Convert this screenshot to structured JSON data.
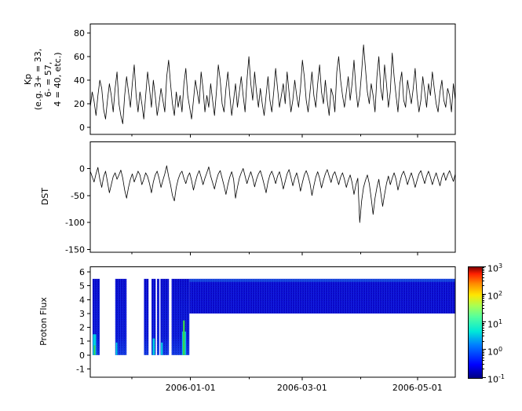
{
  "figure": {
    "background": "#ffffff",
    "line_color": "#000000"
  },
  "x_axis": {
    "start_date": "2005-11-09",
    "end_date": "2006-05-21",
    "days_total": 193,
    "major_ticks": [
      {
        "day": 53,
        "label": "2006-01-01"
      },
      {
        "day": 112,
        "label": "2006-03-01"
      },
      {
        "day": 173,
        "label": "2006-05-01"
      }
    ],
    "minor_tick_days": [
      22,
      84,
      143
    ]
  },
  "chart_data": [
    {
      "type": "line",
      "name": "kp",
      "ylabel_lines": [
        "Kp",
        "(e.g. 3+ = 33,",
        "6- = 57,",
        "4 = 40, etc.)"
      ],
      "ylim": [
        -6,
        88
      ],
      "yticks": [
        0,
        20,
        40,
        60,
        80
      ],
      "line_color": "#000000",
      "values": [
        17,
        30,
        22,
        10,
        27,
        40,
        33,
        15,
        7,
        23,
        37,
        27,
        13,
        33,
        47,
        20,
        10,
        3,
        27,
        43,
        30,
        17,
        37,
        53,
        27,
        13,
        30,
        20,
        7,
        27,
        47,
        33,
        17,
        40,
        27,
        10,
        20,
        33,
        23,
        13,
        43,
        57,
        37,
        20,
        10,
        30,
        17,
        27,
        13,
        37,
        50,
        27,
        17,
        7,
        23,
        40,
        30,
        20,
        47,
        33,
        13,
        27,
        17,
        37,
        23,
        10,
        30,
        53,
        40,
        20,
        13,
        33,
        47,
        27,
        10,
        23,
        37,
        17,
        30,
        43,
        27,
        13,
        40,
        60,
        37,
        23,
        47,
        30,
        17,
        33,
        20,
        10,
        27,
        43,
        23,
        13,
        30,
        50,
        33,
        17,
        27,
        37,
        20,
        47,
        30,
        13,
        23,
        40,
        27,
        17,
        33,
        57,
        43,
        23,
        13,
        30,
        47,
        27,
        17,
        37,
        53,
        30,
        20,
        40,
        23,
        10,
        33,
        27,
        13,
        47,
        60,
        40,
        27,
        17,
        30,
        43,
        23,
        37,
        57,
        33,
        17,
        27,
        47,
        70,
        50,
        30,
        20,
        37,
        27,
        13,
        43,
        60,
        33,
        23,
        53,
        37,
        17,
        30,
        63,
        43,
        27,
        13,
        37,
        47,
        23,
        17,
        40,
        30,
        20,
        33,
        50,
        27,
        13,
        23,
        43,
        30,
        17,
        37,
        27,
        47,
        33,
        20,
        13,
        30,
        40,
        23,
        17,
        33,
        27,
        13,
        37,
        23
      ]
    },
    {
      "type": "line",
      "name": "dst",
      "ylabel": "DST",
      "ylim": [
        -155,
        50
      ],
      "yticks": [
        0,
        -50,
        -100,
        -150
      ],
      "line_color": "#000000",
      "values": [
        -5,
        -15,
        -25,
        -10,
        2,
        -20,
        -35,
        -15,
        -5,
        -25,
        -45,
        -30,
        -15,
        -8,
        -20,
        -12,
        -3,
        -18,
        -40,
        -55,
        -35,
        -20,
        -10,
        -25,
        -15,
        -5,
        -12,
        -30,
        -20,
        -8,
        -15,
        -28,
        -45,
        -25,
        -12,
        -5,
        -18,
        -35,
        -22,
        -10,
        5,
        -15,
        -30,
        -50,
        -60,
        -35,
        -20,
        -10,
        -5,
        -18,
        -28,
        -15,
        -8,
        -22,
        -40,
        -25,
        -12,
        -4,
        -16,
        -30,
        -18,
        -8,
        3,
        -14,
        -26,
        -38,
        -22,
        -10,
        -4,
        -18,
        -32,
        -48,
        -30,
        -16,
        -6,
        -20,
        -55,
        -35,
        -18,
        -8,
        0,
        -14,
        -28,
        -16,
        -6,
        -18,
        -34,
        -20,
        -10,
        -4,
        -16,
        -30,
        -45,
        -25,
        -12,
        -5,
        -15,
        -28,
        -14,
        -6,
        -20,
        -38,
        -24,
        -10,
        -2,
        -16,
        -32,
        -18,
        -8,
        -22,
        -42,
        -26,
        -12,
        -4,
        -14,
        -28,
        -50,
        -32,
        -16,
        -6,
        -18,
        -36,
        -22,
        -10,
        -2,
        -14,
        -26,
        -12,
        -6,
        -18,
        -30,
        -16,
        -8,
        -20,
        -35,
        -22,
        -12,
        -26,
        -48,
        -30,
        -18,
        -100,
        -60,
        -35,
        -22,
        -12,
        -28,
        -55,
        -85,
        -55,
        -35,
        -20,
        -45,
        -70,
        -48,
        -28,
        -14,
        -30,
        -18,
        -8,
        -20,
        -40,
        -25,
        -12,
        -5,
        -16,
        -30,
        -18,
        -8,
        -20,
        -35,
        -22,
        -10,
        -4,
        -16,
        -28,
        -14,
        -5,
        -16,
        -30,
        -18,
        -8,
        -20,
        -32,
        -16,
        -8,
        -22,
        -12,
        -4,
        -14,
        -24,
        -10
      ]
    },
    {
      "type": "heatmap",
      "name": "flux",
      "ylabel": "Proton Flux",
      "ylim": [
        -1.6,
        6.4
      ],
      "yticks": [
        -1,
        0,
        1,
        2,
        3,
        4,
        5,
        6
      ],
      "base_color": "#0a0ad0",
      "segments": [
        {
          "d0": 1.2,
          "d1": 5.0,
          "y0": 0,
          "y1": 5.5
        },
        {
          "d0": 13.2,
          "d1": 19.2,
          "y0": 0,
          "y1": 5.5
        },
        {
          "d0": 28.4,
          "d1": 30.8,
          "y0": 0,
          "y1": 5.5
        },
        {
          "d0": 32.4,
          "d1": 34.6,
          "y0": 0,
          "y1": 5.5
        },
        {
          "d0": 35.3,
          "d1": 36.5,
          "y0": 0,
          "y1": 5.5
        },
        {
          "d0": 37.1,
          "d1": 41.6,
          "y0": 0,
          "y1": 5.5
        },
        {
          "d0": 43.0,
          "d1": 52.4,
          "y0": 0,
          "y1": 5.5
        },
        {
          "d0": 52.4,
          "d1": 193,
          "y0": 3.0,
          "y1": 5.5
        }
      ],
      "streaks": [
        {
          "d0": 1.4,
          "d1": 3.1,
          "y0": 0,
          "y1": 1.5,
          "color": "#00cfe0"
        },
        {
          "d0": 1.9,
          "d1": 2.6,
          "y0": 0,
          "y1": 0.7,
          "color": "#3ecf4e"
        },
        {
          "d0": 13.5,
          "d1": 14.3,
          "y0": 0,
          "y1": 0.9,
          "color": "#00cfe0"
        },
        {
          "d0": 33.0,
          "d1": 34.1,
          "y0": 0,
          "y1": 1.2,
          "color": "#00cfe0"
        },
        {
          "d0": 37.4,
          "d1": 38.3,
          "y0": 0,
          "y1": 0.9,
          "color": "#00cfe0"
        },
        {
          "d0": 48.6,
          "d1": 50.6,
          "y0": 0,
          "y1": 1.7,
          "color": "#00cfe0"
        },
        {
          "d0": 49.0,
          "d1": 50.0,
          "y0": 0,
          "y1": 2.5,
          "color": "#3ecf4e"
        }
      ],
      "colorbar": {
        "scale": "log10",
        "tick_exponents": [
          3,
          2,
          1,
          0,
          -1
        ],
        "colormap": "jet",
        "gradient_stops": [
          {
            "offset": 0,
            "color": "#000083"
          },
          {
            "offset": 0.12,
            "color": "#0000ff"
          },
          {
            "offset": 0.3,
            "color": "#0080ff"
          },
          {
            "offset": 0.42,
            "color": "#00e8d8"
          },
          {
            "offset": 0.55,
            "color": "#54ff9e"
          },
          {
            "offset": 0.65,
            "color": "#a8ff54"
          },
          {
            "offset": 0.75,
            "color": "#ffe600"
          },
          {
            "offset": 0.85,
            "color": "#ff8c00"
          },
          {
            "offset": 0.94,
            "color": "#ff2000"
          },
          {
            "offset": 1,
            "color": "#800000"
          }
        ]
      }
    }
  ]
}
